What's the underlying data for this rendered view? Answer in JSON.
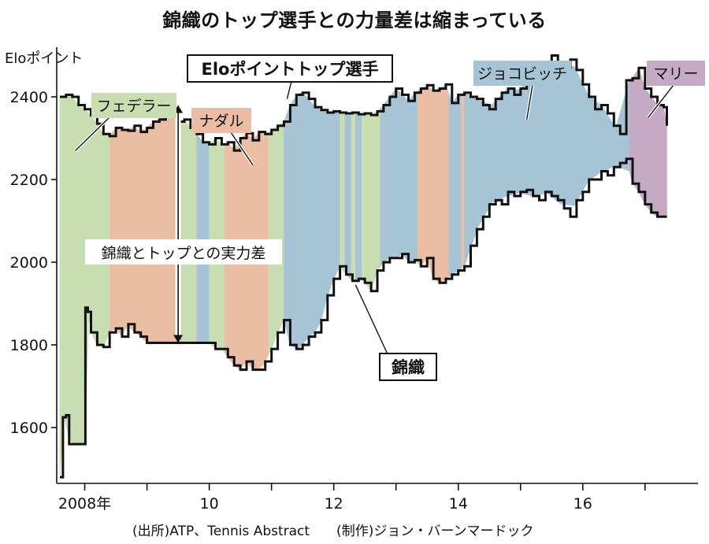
{
  "title": "錦織のトップ選手との力量差は縮まっている",
  "source_text": "(出所)ATP、Tennis Abstract　　(制作)ジョン・バーンマードック",
  "chart_data": {
    "type": "line",
    "title": "錦織のトップ選手との力量差は縮まっている",
    "ylabel": "Eloポイント",
    "xlabel": "",
    "ylim": [
      1465,
      2520
    ],
    "xlim": [
      2007.55,
      2017.85
    ],
    "yticks": [
      1600,
      1800,
      2000,
      2200,
      2400
    ],
    "xticks": [
      {
        "value": 2008,
        "label": "2008年"
      },
      {
        "value": 2009,
        "label": ""
      },
      {
        "value": 2010,
        "label": "10"
      },
      {
        "value": 2011,
        "label": ""
      },
      {
        "value": 2012,
        "label": "12"
      },
      {
        "value": 2013,
        "label": ""
      },
      {
        "value": 2014,
        "label": "14"
      },
      {
        "value": 2015,
        "label": ""
      },
      {
        "value": 2016,
        "label": "16"
      },
      {
        "value": 2017,
        "label": ""
      }
    ],
    "grid": false,
    "series": [
      {
        "name": "Eloポイントトップ選手",
        "x": [
          2007.6,
          2007.7,
          2007.8,
          2007.9,
          2008.0,
          2008.1,
          2008.2,
          2008.3,
          2008.4,
          2008.5,
          2008.6,
          2008.7,
          2008.8,
          2008.9,
          2009.0,
          2009.1,
          2009.2,
          2009.3,
          2009.4,
          2009.5,
          2009.6,
          2009.7,
          2009.8,
          2009.9,
          2010.0,
          2010.1,
          2010.2,
          2010.3,
          2010.4,
          2010.5,
          2010.6,
          2010.7,
          2010.8,
          2010.9,
          2011.0,
          2011.1,
          2011.2,
          2011.3,
          2011.4,
          2011.5,
          2011.6,
          2011.7,
          2011.8,
          2011.9,
          2012.0,
          2012.1,
          2012.2,
          2012.3,
          2012.4,
          2012.5,
          2012.6,
          2012.7,
          2012.8,
          2012.9,
          2013.0,
          2013.1,
          2013.2,
          2013.3,
          2013.4,
          2013.5,
          2013.6,
          2013.7,
          2013.8,
          2013.9,
          2014.0,
          2014.1,
          2014.2,
          2014.3,
          2014.4,
          2014.5,
          2014.6,
          2014.7,
          2014.8,
          2014.9,
          2015.0,
          2015.1,
          2015.2,
          2015.3,
          2015.4,
          2015.5,
          2015.6,
          2015.7,
          2015.8,
          2015.9,
          2016.0,
          2016.1,
          2016.2,
          2016.3,
          2016.4,
          2016.5,
          2016.6,
          2016.7,
          2016.8,
          2016.9,
          2017.0,
          2017.1,
          2017.2,
          2017.3,
          2017.35
        ],
        "values": [
          2400,
          2405,
          2400,
          2380,
          2370,
          2355,
          2335,
          2310,
          2305,
          2325,
          2320,
          2318,
          2330,
          2315,
          2325,
          2340,
          2345,
          2370,
          2365,
          2340,
          2345,
          2325,
          2310,
          2290,
          2285,
          2300,
          2285,
          2290,
          2270,
          2300,
          2312,
          2295,
          2315,
          2310,
          2320,
          2330,
          2340,
          2380,
          2405,
          2410,
          2395,
          2375,
          2368,
          2362,
          2365,
          2362,
          2360,
          2362,
          2358,
          2360,
          2356,
          2365,
          2380,
          2400,
          2420,
          2405,
          2390,
          2410,
          2420,
          2428,
          2415,
          2420,
          2430,
          2385,
          2405,
          2410,
          2400,
          2395,
          2380,
          2370,
          2395,
          2410,
          2420,
          2405,
          2420,
          2440,
          2455,
          2470,
          2480,
          2500,
          2480,
          2470,
          2490,
          2465,
          2430,
          2400,
          2370,
          2380,
          2360,
          2330,
          2310,
          2440,
          2445,
          2470,
          2420,
          2400,
          2380,
          2375,
          2330
        ]
      },
      {
        "name": "錦織",
        "x": [
          2007.6,
          2007.65,
          2007.7,
          2007.75,
          2008.0,
          2008.01,
          2008.05,
          2008.1,
          2008.2,
          2008.3,
          2008.4,
          2008.5,
          2008.6,
          2008.7,
          2008.8,
          2008.9,
          2009.0,
          2009.5,
          2010.0,
          2010.1,
          2010.2,
          2010.3,
          2010.4,
          2010.5,
          2010.6,
          2010.7,
          2010.8,
          2010.9,
          2011.0,
          2011.1,
          2011.2,
          2011.3,
          2011.4,
          2011.5,
          2011.6,
          2011.7,
          2011.8,
          2011.9,
          2012.0,
          2012.1,
          2012.2,
          2012.3,
          2012.4,
          2012.5,
          2012.6,
          2012.7,
          2012.8,
          2012.9,
          2013.0,
          2013.1,
          2013.2,
          2013.3,
          2013.4,
          2013.5,
          2013.6,
          2013.7,
          2013.8,
          2013.9,
          2014.0,
          2014.1,
          2014.2,
          2014.3,
          2014.4,
          2014.5,
          2014.6,
          2014.7,
          2014.8,
          2014.9,
          2015.0,
          2015.1,
          2015.2,
          2015.3,
          2015.4,
          2015.5,
          2015.6,
          2015.7,
          2015.8,
          2015.9,
          2016.0,
          2016.1,
          2016.2,
          2016.3,
          2016.4,
          2016.5,
          2016.6,
          2016.7,
          2016.8,
          2016.9,
          2017.0,
          2017.1,
          2017.2,
          2017.3,
          2017.35
        ],
        "values": [
          1480,
          1625,
          1630,
          1560,
          1560,
          1890,
          1880,
          1830,
          1800,
          1795,
          1830,
          1840,
          1820,
          1850,
          1830,
          1820,
          1805,
          1805,
          1805,
          1790,
          1790,
          1770,
          1750,
          1740,
          1760,
          1740,
          1740,
          1760,
          1790,
          1830,
          1860,
          1800,
          1790,
          1800,
          1820,
          1830,
          1860,
          1920,
          1960,
          1990,
          1970,
          1955,
          1960,
          1950,
          1930,
          1980,
          2000,
          2010,
          2010,
          2020,
          2000,
          2005,
          1990,
          2010,
          1960,
          1950,
          1960,
          1970,
          1980,
          1990,
          2040,
          2080,
          2110,
          2140,
          2150,
          2140,
          2170,
          2160,
          2170,
          2175,
          2160,
          2150,
          2170,
          2160,
          2150,
          2130,
          2110,
          2150,
          2170,
          2200,
          2200,
          2220,
          2210,
          2230,
          2240,
          2250,
          2190,
          2170,
          2140,
          2120,
          2110,
          2110,
          2110
        ]
      }
    ],
    "top_player_segments": [
      {
        "name": "フェデラー",
        "start": 2007.6,
        "end": 2008.4,
        "color": "#c9ddb2"
      },
      {
        "name": "ナダル",
        "start": 2008.4,
        "end": 2009.55,
        "color": "#ebbda5"
      },
      {
        "name": "フェデラー",
        "start": 2009.55,
        "end": 2009.8,
        "color": "#c9ddb2"
      },
      {
        "name": "ジョコビッチ",
        "start": 2009.8,
        "end": 2010.0,
        "color": "#a7c3d6"
      },
      {
        "name": "フェデラー",
        "start": 2010.0,
        "end": 2010.25,
        "color": "#c9ddb2"
      },
      {
        "name": "ナダル",
        "start": 2010.25,
        "end": 2010.95,
        "color": "#ebbda5"
      },
      {
        "name": "フェデラー",
        "start": 2010.95,
        "end": 2011.2,
        "color": "#c9ddb2"
      },
      {
        "name": "ジョコビッチ",
        "start": 2011.2,
        "end": 2012.1,
        "color": "#a7c3d6"
      },
      {
        "name": "フェデラー",
        "start": 2012.1,
        "end": 2012.18,
        "color": "#c9ddb2"
      },
      {
        "name": "ジョコビッチ",
        "start": 2012.18,
        "end": 2012.28,
        "color": "#a7c3d6"
      },
      {
        "name": "フェデラー",
        "start": 2012.28,
        "end": 2012.35,
        "color": "#c9ddb2"
      },
      {
        "name": "ジョコビッチ",
        "start": 2012.35,
        "end": 2012.45,
        "color": "#a7c3d6"
      },
      {
        "name": "フェデラー",
        "start": 2012.45,
        "end": 2012.75,
        "color": "#c9ddb2"
      },
      {
        "name": "ジョコビッチ",
        "start": 2012.75,
        "end": 2013.35,
        "color": "#a7c3d6"
      },
      {
        "name": "ナダル",
        "start": 2013.35,
        "end": 2013.85,
        "color": "#ebbda5"
      },
      {
        "name": "ジョコビッチ",
        "start": 2013.85,
        "end": 2014.05,
        "color": "#a7c3d6"
      },
      {
        "name": "ナダル",
        "start": 2014.05,
        "end": 2014.1,
        "color": "#ebbda5"
      },
      {
        "name": "ジョコビッチ",
        "start": 2014.1,
        "end": 2016.75,
        "color": "#a7c3d6"
      },
      {
        "name": "マリー",
        "start": 2016.75,
        "end": 2017.35,
        "color": "#c6a9c5"
      }
    ],
    "annotations": [
      {
        "text": "Eloポイントトップ選手",
        "style": "boxed"
      },
      {
        "text": "錦織",
        "style": "boxed"
      },
      {
        "text": "フェデラー",
        "color": "#c9ddb2"
      },
      {
        "text": "ナダル",
        "color": "#ebbda5"
      },
      {
        "text": "ジョコビッチ",
        "color": "#a7c3d6"
      },
      {
        "text": "マリー",
        "color": "#c6a9c5"
      },
      {
        "text": "錦織とトップとの実力差"
      }
    ],
    "arrow": {
      "x": 2009.5,
      "from": 1805,
      "to": 2380
    }
  }
}
